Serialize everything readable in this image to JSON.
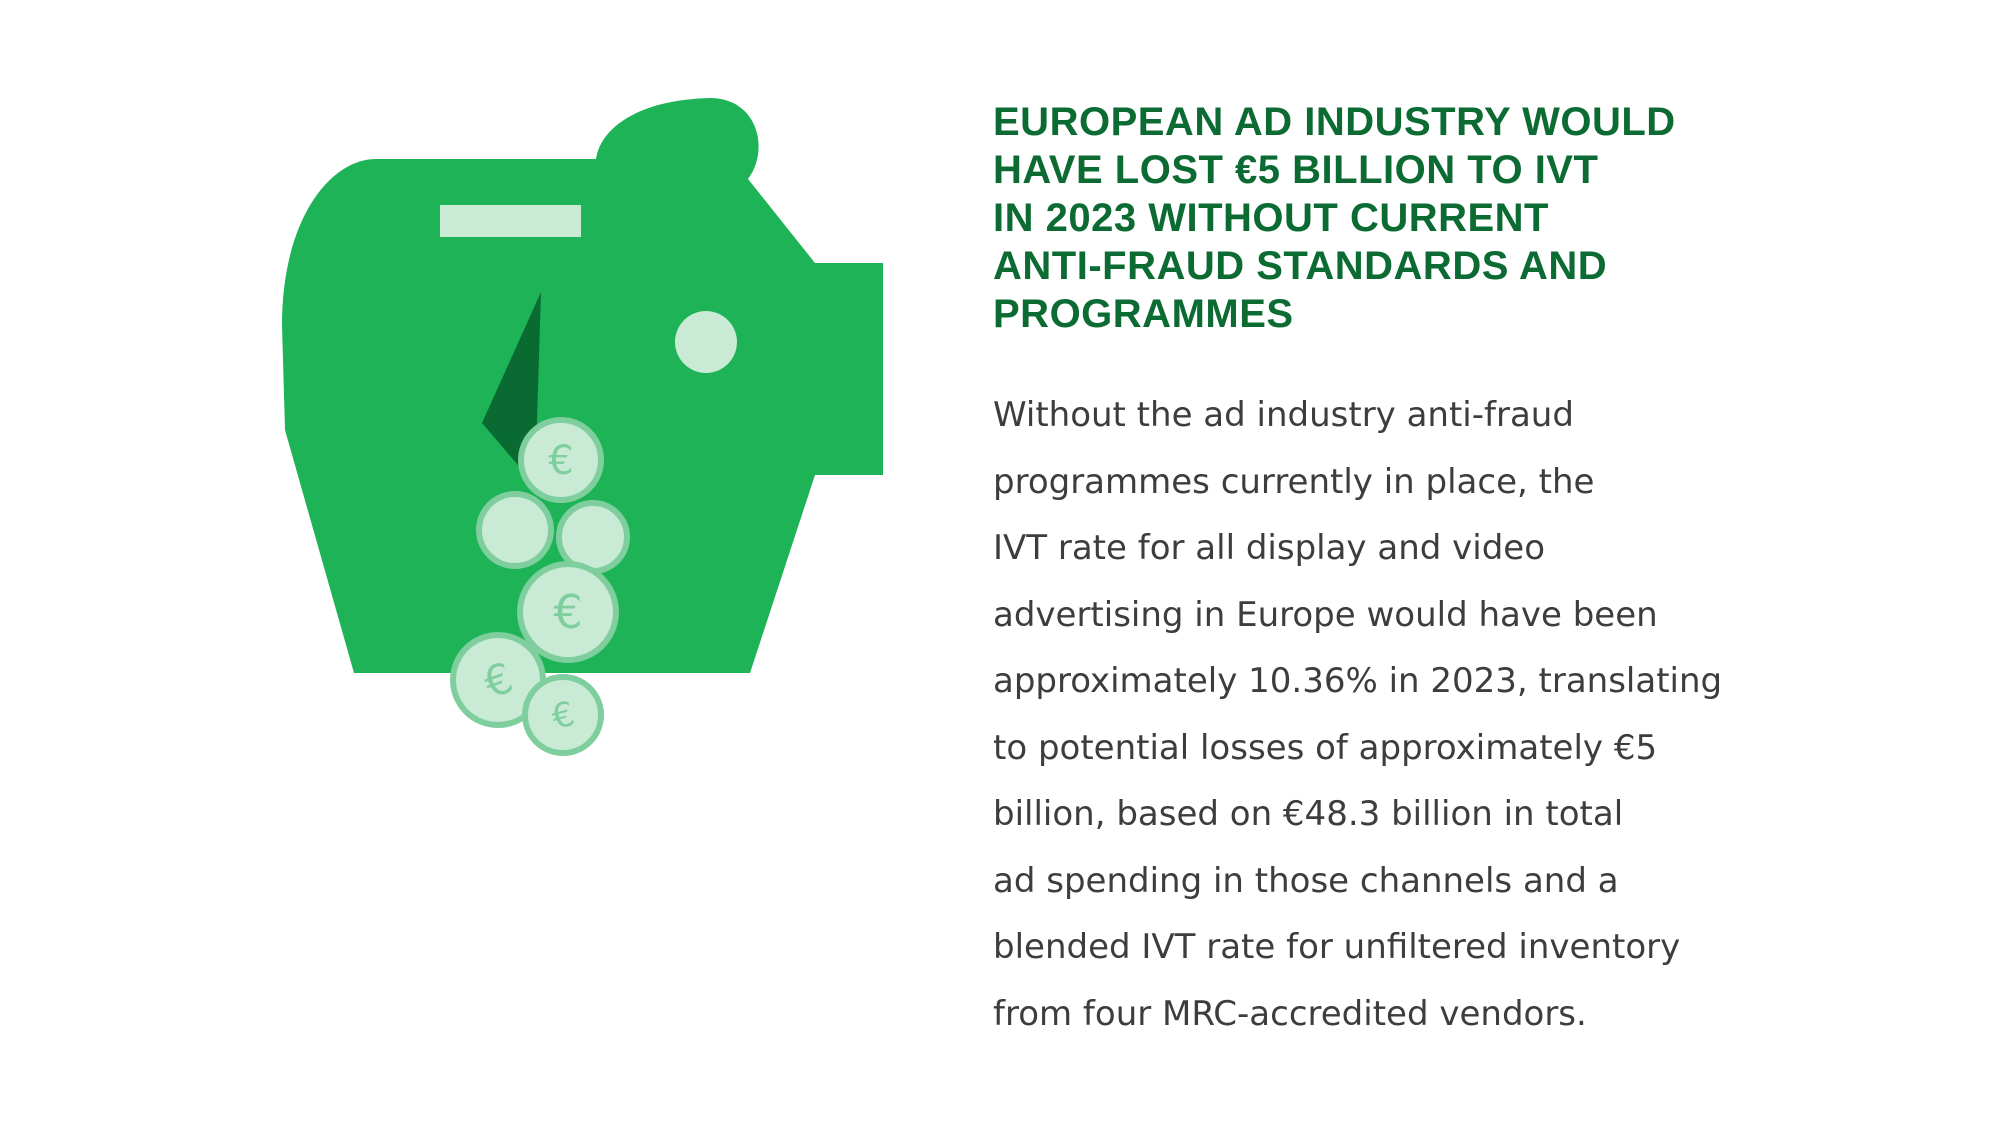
{
  "illustration": {
    "icon": "broken-piggy-bank-with-euro-coins",
    "coin_symbol": "€",
    "colors": {
      "pig_green": "#1db356",
      "crack_dark_green": "#0a6b32",
      "light_mint": "#c9ead5",
      "coin_outline": "#7fce9e"
    }
  },
  "headline": {
    "lines": [
      "EUROPEAN AD INDUSTRY WOULD",
      "HAVE LOST €5 BILLION TO IVT",
      "IN 2023 WITHOUT CURRENT",
      "ANTI-FRAUD STANDARDS AND",
      "PROGRAMMES"
    ],
    "color": "#0b6b32"
  },
  "body": {
    "lines": [
      "Without the ad industry anti-fraud",
      "programmes currently in place, the",
      "IVT rate for all display and video",
      "advertising in Europe would have been",
      "approximately 10.36% in 2023, translating",
      "to potential losses of approximately €5",
      "billion, based on €48.3 billion in total",
      "ad spending in those channels and a",
      "blended IVT rate for unfiltered inventory",
      "from four MRC-accredited vendors."
    ],
    "color": "#3d3d3d"
  }
}
